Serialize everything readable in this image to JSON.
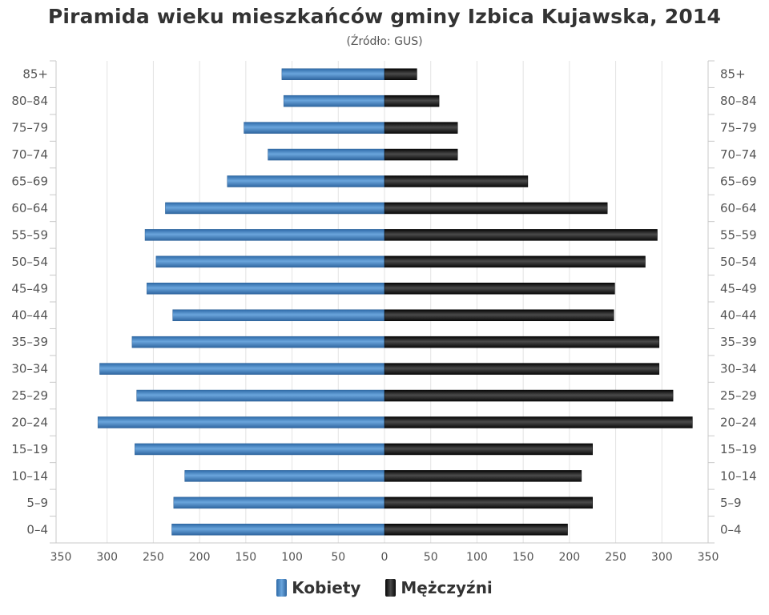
{
  "chart_data": {
    "type": "bar",
    "orientation": "horizontal-population-pyramid",
    "title": "Piramida wieku mieszkańców gminy Izbica Kujawska, 2014",
    "subtitle": "(Źródło: GUS)",
    "categories": [
      "85+",
      "80–84",
      "75–79",
      "70–74",
      "65–69",
      "60–64",
      "55–59",
      "50–54",
      "45–49",
      "40–44",
      "35–39",
      "30–34",
      "25–29",
      "20–24",
      "15–19",
      "10–14",
      "5–9",
      "0–4"
    ],
    "series": [
      {
        "name": "Kobiety",
        "color": "#3d7ab8",
        "side": "left",
        "values": [
          111,
          109,
          152,
          126,
          170,
          237,
          259,
          247,
          257,
          229,
          273,
          308,
          268,
          310,
          270,
          216,
          228,
          230
        ]
      },
      {
        "name": "Mężczyźni",
        "color": "#1a1a1a",
        "side": "right",
        "values": [
          35,
          59,
          79,
          79,
          155,
          241,
          295,
          282,
          249,
          248,
          297,
          297,
          312,
          333,
          225,
          213,
          225,
          198
        ]
      }
    ],
    "xlim": [
      -350,
      350
    ],
    "xticks": [
      -350,
      -300,
      -250,
      -200,
      -150,
      -100,
      -50,
      0,
      50,
      100,
      150,
      200,
      250,
      300,
      350
    ],
    "xtick_labels": [
      "350",
      "300",
      "250",
      "200",
      "150",
      "100",
      "50",
      "0",
      "50",
      "100",
      "150",
      "200",
      "250",
      "300",
      "350"
    ],
    "grid": true,
    "legend_position": "bottom-center"
  }
}
